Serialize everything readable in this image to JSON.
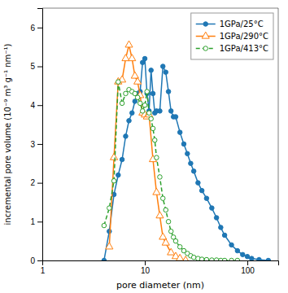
{
  "chart_data": {
    "type": "line",
    "xlabel": "pore diameter (nm)",
    "ylabel": "incremental pore volume (10⁻⁹ m³ g⁻¹ nm⁻¹)",
    "log": "x",
    "xlim": [
      1,
      200
    ],
    "xticks": [
      1,
      10,
      100
    ],
    "ylim": [
      0,
      6.5
    ],
    "yticks": [
      0,
      1,
      2,
      3,
      4,
      5,
      6
    ],
    "grid": false,
    "legend": "upper right",
    "series": [
      {
        "name": "1GPa/25°C",
        "marker": "filled-circle",
        "line_style": "solid",
        "x": [
          4.0,
          4.5,
          5.0,
          5.5,
          6.0,
          6.5,
          7.0,
          7.5,
          8.0,
          8.5,
          9.0,
          9.5,
          10.0,
          10.5,
          11.0,
          11.5,
          12.0,
          12.5,
          13.0,
          14.0,
          15.0,
          16.0,
          17.0,
          18.0,
          19.0,
          20.0,
          22.0,
          24.0,
          26.0,
          28.0,
          30.0,
          33.0,
          36.0,
          40.0,
          45.0,
          50.0,
          55.0,
          60.0,
          70.0,
          80.0,
          90.0,
          100.0,
          110.0,
          130.0,
          160.0
        ],
        "values": [
          0.0,
          0.75,
          1.7,
          2.2,
          2.6,
          3.2,
          3.6,
          3.8,
          4.1,
          4.3,
          4.35,
          5.1,
          5.2,
          4.3,
          3.85,
          4.9,
          4.3,
          3.8,
          3.85,
          3.85,
          5.0,
          4.85,
          4.35,
          3.85,
          3.7,
          3.7,
          3.3,
          3.0,
          2.75,
          2.5,
          2.3,
          2.0,
          1.8,
          1.6,
          1.35,
          1.1,
          0.85,
          0.65,
          0.4,
          0.25,
          0.15,
          0.1,
          0.05,
          0.02,
          0.0
        ]
      },
      {
        "name": "1GPa/290°C",
        "marker": "open-triangle",
        "line_style": "solid",
        "x": [
          4.5,
          5.0,
          5.5,
          6.0,
          6.5,
          7.0,
          7.5,
          8.0,
          8.5,
          9.0,
          9.5,
          10.0,
          10.5,
          11.0,
          12.0,
          13.0,
          14.0,
          15.0,
          16.0,
          18.0,
          20.0,
          22.0,
          25.0
        ],
        "values": [
          0.35,
          2.65,
          4.6,
          4.65,
          5.2,
          5.55,
          5.2,
          4.75,
          4.6,
          4.25,
          3.8,
          3.75,
          3.7,
          3.75,
          2.6,
          1.75,
          1.15,
          0.6,
          0.45,
          0.2,
          0.1,
          0.05,
          0.0
        ]
      },
      {
        "name": "1GPa/413°C",
        "marker": "open-circle",
        "line_style": "dashed",
        "x": [
          4.0,
          4.5,
          5.0,
          5.5,
          6.0,
          6.5,
          7.0,
          7.5,
          8.0,
          8.5,
          9.0,
          9.5,
          10.0,
          10.5,
          11.0,
          11.5,
          12.0,
          12.5,
          13.0,
          14.0,
          15.0,
          16.0,
          17.0,
          18.0,
          19.0,
          20.0,
          22.0,
          24.0,
          26.0,
          28.0,
          30.0,
          33.0,
          36.0,
          40.0,
          45.0,
          50.0,
          55.0,
          60.0,
          70.0,
          80.0
        ],
        "values": [
          0.9,
          1.35,
          2.05,
          4.6,
          4.05,
          4.3,
          4.4,
          4.35,
          4.3,
          4.2,
          4.05,
          3.85,
          4.0,
          4.35,
          3.8,
          3.65,
          3.4,
          3.1,
          2.65,
          2.15,
          1.6,
          1.3,
          1.0,
          0.75,
          0.6,
          0.5,
          0.35,
          0.25,
          0.18,
          0.12,
          0.08,
          0.05,
          0.03,
          0.02,
          0.01,
          0.01,
          0.0,
          0.0,
          0.0,
          0.0
        ]
      }
    ]
  }
}
